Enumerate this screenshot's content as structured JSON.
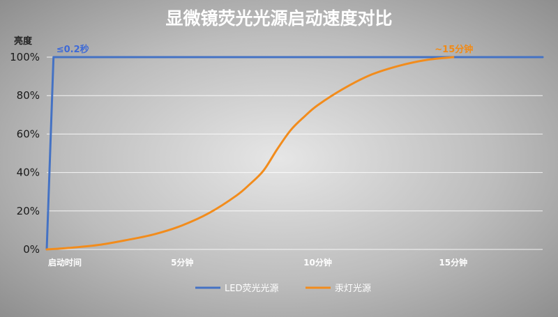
{
  "chart_data": {
    "type": "line",
    "title": "显微镜荧光光源启动速度对比",
    "ylabel": "亮度",
    "xlabel": "",
    "xlim": [
      0,
      18.3
    ],
    "ylim": [
      0,
      100
    ],
    "x_ticks": [
      {
        "value": 0,
        "label": "启动时间"
      },
      {
        "value": 5,
        "label": "5分钟"
      },
      {
        "value": 10,
        "label": "10分钟"
      },
      {
        "value": 15,
        "label": "15分钟"
      }
    ],
    "y_ticks": [
      {
        "value": 0,
        "label": "0%"
      },
      {
        "value": 20,
        "label": "20%"
      },
      {
        "value": 40,
        "label": "40%"
      },
      {
        "value": 60,
        "label": "60%"
      },
      {
        "value": 80,
        "label": "80%"
      },
      {
        "value": 100,
        "label": "100%"
      }
    ],
    "series": [
      {
        "name": "LED荧光光源",
        "color": "#4472c4",
        "x": [
          0,
          0.25,
          18.3
        ],
        "y": [
          0,
          100,
          100
        ]
      },
      {
        "name": "汞灯光源",
        "color": "#f28c1c",
        "x": [
          0,
          1,
          2,
          3,
          4,
          5,
          6,
          7,
          7.5,
          8,
          8.5,
          9,
          9.5,
          10,
          11,
          12,
          13,
          14,
          15
        ],
        "y": [
          0,
          1,
          2.5,
          5,
          8,
          12.5,
          19,
          28,
          34,
          41,
          52,
          62,
          69,
          75,
          84,
          91,
          95.5,
          98.5,
          100
        ]
      }
    ],
    "annotations": [
      {
        "text": "≤0.2秒",
        "x": 0.25,
        "y": 100,
        "series": 0
      },
      {
        "text": "~15分钟",
        "x": 15,
        "y": 100,
        "series": 1
      }
    ],
    "legend": {
      "position": "bottom"
    },
    "grid": true
  }
}
